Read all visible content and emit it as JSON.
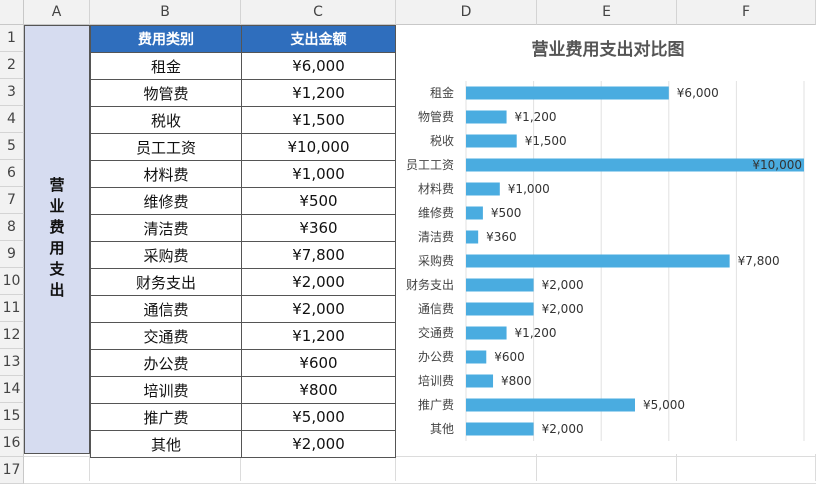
{
  "columns": [
    "A",
    "B",
    "C",
    "D",
    "E",
    "F"
  ],
  "rows": [
    "1",
    "2",
    "3",
    "4",
    "5",
    "6",
    "7",
    "8",
    "9",
    "10",
    "11",
    "12",
    "13",
    "14",
    "15",
    "16",
    "17"
  ],
  "merged_label": "营业费用支出",
  "table": {
    "headers": [
      "费用类别",
      "支出金额"
    ],
    "items": [
      {
        "category": "租金",
        "amount": "¥6,000"
      },
      {
        "category": "物管费",
        "amount": "¥1,200"
      },
      {
        "category": "税收",
        "amount": "¥1,500"
      },
      {
        "category": "员工工资",
        "amount": "¥10,000"
      },
      {
        "category": "材料费",
        "amount": "¥1,000"
      },
      {
        "category": "维修费",
        "amount": "¥500"
      },
      {
        "category": "清洁费",
        "amount": "¥360"
      },
      {
        "category": "采购费",
        "amount": "¥7,800"
      },
      {
        "category": "财务支出",
        "amount": "¥2,000"
      },
      {
        "category": "通信费",
        "amount": "¥2,000"
      },
      {
        "category": "交通费",
        "amount": "¥1,200"
      },
      {
        "category": "办公费",
        "amount": "¥600"
      },
      {
        "category": "培训费",
        "amount": "¥800"
      },
      {
        "category": "推广费",
        "amount": "¥5,000"
      },
      {
        "category": "其他",
        "amount": "¥2,000"
      }
    ]
  },
  "colors": {
    "bar": "#4aace0",
    "header": "#2f6ebd",
    "merged": "#d6dcf0"
  },
  "chart_data": {
    "type": "bar",
    "orientation": "horizontal",
    "title": "营业费用支出对比图",
    "categories": [
      "租金",
      "物管费",
      "税收",
      "员工工资",
      "材料费",
      "维修费",
      "清洁费",
      "采购费",
      "财务支出",
      "通信费",
      "交通费",
      "办公费",
      "培训费",
      "推广费",
      "其他"
    ],
    "values": [
      6000,
      1200,
      1500,
      10000,
      1000,
      500,
      360,
      7800,
      2000,
      2000,
      1200,
      600,
      800,
      5000,
      2000
    ],
    "data_labels": [
      "¥6,000",
      "¥1,200",
      "¥1,500",
      "¥10,000",
      "¥1,000",
      "¥500",
      "¥360",
      "¥7,800",
      "¥2,000",
      "¥2,000",
      "¥1,200",
      "¥600",
      "¥800",
      "¥5,000",
      "¥2,000"
    ],
    "xlim": [
      0,
      10000
    ],
    "grid": true,
    "legend": "none"
  }
}
